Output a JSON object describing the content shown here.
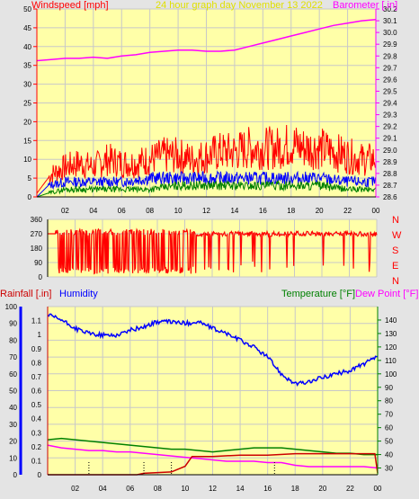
{
  "header": {
    "wind_label": "Windspeed [mph]",
    "title": "24 hour graph day   November 13 2022",
    "baro_label": "Barometer [.in]"
  },
  "bottom_labels": {
    "rain": "Rainfall [.in]",
    "humidity": "Humidity",
    "temperature": "Temperature [°F]",
    "dewpoint": "Dew Point [°F]"
  },
  "colors": {
    "background": "#e4e4e4",
    "plot_fill": "#ffffa8",
    "grid": "#c8c8c8",
    "wind_gust": "#ff0000",
    "wind_avg": "#0000ff",
    "wind_low": "#008000",
    "barometer": "#ff00ff",
    "direction": "#ff0000",
    "humidity": "#0000ff",
    "temperature": "#008000",
    "dewpoint": "#ff00ff",
    "rain": "#cc0000",
    "title": "#e0e000"
  },
  "chart_data": [
    {
      "type": "line",
      "title": "24 hour graph day   November 13 2022",
      "xlabel": "",
      "x_ticks": [
        "02",
        "04",
        "06",
        "08",
        "10",
        "12",
        "14",
        "16",
        "18",
        "20",
        "22",
        "00"
      ],
      "x_range_hours": [
        0,
        24
      ],
      "ylabel_left": "Windspeed [mph]",
      "ylim_left": [
        0,
        50
      ],
      "yticks_left": [
        0,
        5,
        10,
        15,
        20,
        25,
        30,
        35,
        40,
        45,
        50
      ],
      "ylabel_right": "Barometer [.in]",
      "ylim_right": [
        28.6,
        30.2
      ],
      "yticks_right": [
        28.6,
        28.7,
        28.8,
        28.9,
        29.0,
        29.1,
        29.2,
        29.3,
        29.4,
        29.5,
        29.6,
        29.7,
        29.8,
        29.9,
        30.0,
        30.1,
        30.2
      ],
      "grid": true,
      "series": [
        {
          "name": "Barometer [.in]",
          "axis": "right",
          "points": [
            [
              0,
              29.76
            ],
            [
              1,
              29.77
            ],
            [
              2,
              29.78
            ],
            [
              3,
              29.78
            ],
            [
              4,
              29.79
            ],
            [
              5,
              29.78
            ],
            [
              6,
              29.8
            ],
            [
              7,
              29.81
            ],
            [
              8,
              29.83
            ],
            [
              9,
              29.84
            ],
            [
              10,
              29.85
            ],
            [
              11,
              29.85
            ],
            [
              12,
              29.84
            ],
            [
              13,
              29.84
            ],
            [
              14,
              29.85
            ],
            [
              15,
              29.88
            ],
            [
              16,
              29.91
            ],
            [
              17,
              29.94
            ],
            [
              18,
              29.97
            ],
            [
              19,
              30.0
            ],
            [
              20,
              30.03
            ],
            [
              21,
              30.06
            ],
            [
              22,
              30.08
            ],
            [
              23,
              30.1
            ],
            [
              24,
              30.11
            ]
          ]
        },
        {
          "name": "Wind gust",
          "axis": "left",
          "points": [
            [
              0,
              1
            ],
            [
              0.8,
              5
            ],
            [
              1,
              6
            ],
            [
              2,
              8
            ],
            [
              3,
              9
            ],
            [
              4,
              8
            ],
            [
              5,
              10
            ],
            [
              6,
              9
            ],
            [
              7,
              9
            ],
            [
              8,
              10
            ],
            [
              9,
              11
            ],
            [
              10,
              11
            ],
            [
              11,
              10
            ],
            [
              12,
              11
            ],
            [
              13,
              12
            ],
            [
              14,
              12
            ],
            [
              15,
              13
            ],
            [
              16,
              13
            ],
            [
              17,
              13
            ],
            [
              18,
              14
            ],
            [
              19,
              13
            ],
            [
              20,
              13
            ],
            [
              21,
              12
            ],
            [
              22,
              11
            ],
            [
              23,
              10
            ],
            [
              24,
              10
            ]
          ]
        },
        {
          "name": "Wind average",
          "axis": "left",
          "points": [
            [
              0,
              0
            ],
            [
              0.8,
              3
            ],
            [
              2,
              4
            ],
            [
              4,
              4
            ],
            [
              6,
              4
            ],
            [
              8,
              5
            ],
            [
              10,
              5
            ],
            [
              12,
              5
            ],
            [
              14,
              5
            ],
            [
              16,
              5
            ],
            [
              18,
              5
            ],
            [
              20,
              5
            ],
            [
              22,
              4
            ],
            [
              24,
              4
            ]
          ]
        },
        {
          "name": "Wind low",
          "axis": "left",
          "points": [
            [
              0,
              0
            ],
            [
              0.8,
              1
            ],
            [
              2,
              2
            ],
            [
              4,
              2
            ],
            [
              6,
              2
            ],
            [
              8,
              2
            ],
            [
              10,
              3
            ],
            [
              12,
              3
            ],
            [
              14,
              3
            ],
            [
              16,
              3
            ],
            [
              18,
              3
            ],
            [
              20,
              3
            ],
            [
              22,
              2
            ],
            [
              24,
              2
            ]
          ]
        }
      ]
    },
    {
      "type": "line",
      "xlabel": "",
      "x_range_hours": [
        0,
        24
      ],
      "ylabel_left": "",
      "ylim_left": [
        0,
        360
      ],
      "yticks_left": [
        0,
        90,
        180,
        270,
        360
      ],
      "compass_labels": [
        "N",
        "W",
        "S",
        "E",
        "N"
      ],
      "series": [
        {
          "name": "Wind direction",
          "points": [
            [
              0,
              270
            ],
            [
              0.6,
              270
            ],
            [
              1,
              30
            ],
            [
              2,
              40
            ],
            [
              3,
              20
            ],
            [
              4,
              50
            ],
            [
              5,
              30
            ],
            [
              6,
              280
            ],
            [
              7,
              40
            ],
            [
              8,
              290
            ],
            [
              9,
              30
            ],
            [
              10,
              280
            ],
            [
              11,
              290
            ],
            [
              12,
              280
            ],
            [
              13,
              290
            ],
            [
              14,
              280
            ],
            [
              15,
              285
            ],
            [
              16,
              280
            ],
            [
              17,
              290
            ],
            [
              18,
              280
            ],
            [
              19,
              275
            ],
            [
              20,
              285
            ],
            [
              21,
              280
            ],
            [
              22,
              280
            ],
            [
              23,
              275
            ],
            [
              24,
              270
            ]
          ]
        }
      ]
    },
    {
      "type": "line",
      "x_ticks": [
        "02",
        "04",
        "06",
        "08",
        "10",
        "12",
        "14",
        "16",
        "18",
        "20",
        "22",
        "00"
      ],
      "x_range_hours": [
        0,
        24
      ],
      "ylabel_left": "Rainfall [.in]",
      "ylabel_left2": "Humidity",
      "ylim_rain": [
        0,
        1.2
      ],
      "yticks_rain": [
        0,
        0.1,
        0.2,
        0.3,
        0.4,
        0.5,
        0.6,
        0.7,
        0.8,
        0.9,
        1.0,
        1.1
      ],
      "ylim_humidity": [
        0,
        100
      ],
      "yticks_humidity": [
        0,
        10,
        20,
        30,
        40,
        50,
        60,
        70,
        80,
        90,
        100
      ],
      "ylabel_right": "Temperature [°F]",
      "ylabel_right2": "Dew Point [°F]",
      "ylim_right": [
        25,
        150
      ],
      "yticks_right": [
        30,
        40,
        50,
        60,
        70,
        80,
        90,
        100,
        110,
        120,
        130,
        140
      ],
      "series": [
        {
          "name": "Humidity",
          "axis": "humidity",
          "points": [
            [
              0,
              95
            ],
            [
              1,
              92
            ],
            [
              2,
              87
            ],
            [
              3,
              84
            ],
            [
              4,
              83
            ],
            [
              5,
              83
            ],
            [
              6,
              86
            ],
            [
              7,
              88
            ],
            [
              8,
              91
            ],
            [
              9,
              91
            ],
            [
              10,
              90
            ],
            [
              11,
              91
            ],
            [
              12,
              87
            ],
            [
              13,
              84
            ],
            [
              14,
              80
            ],
            [
              15,
              76
            ],
            [
              16,
              70
            ],
            [
              17,
              60
            ],
            [
              18,
              54
            ],
            [
              19,
              55
            ],
            [
              20,
              58
            ],
            [
              21,
              60
            ],
            [
              22,
              62
            ],
            [
              23,
              66
            ],
            [
              24,
              70
            ]
          ]
        },
        {
          "name": "Temperature [°F]",
          "axis": "right",
          "points": [
            [
              0,
              51
            ],
            [
              1,
              52
            ],
            [
              2,
              51
            ],
            [
              3,
              50
            ],
            [
              4,
              49
            ],
            [
              5,
              48
            ],
            [
              6,
              47
            ],
            [
              7,
              46
            ],
            [
              8,
              45
            ],
            [
              9,
              44
            ],
            [
              10,
              44
            ],
            [
              11,
              43
            ],
            [
              12,
              42
            ],
            [
              13,
              43
            ],
            [
              14,
              44
            ],
            [
              15,
              45
            ],
            [
              16,
              45
            ],
            [
              17,
              45
            ],
            [
              18,
              44
            ],
            [
              19,
              43
            ],
            [
              20,
              42
            ],
            [
              21,
              41
            ],
            [
              22,
              41
            ],
            [
              23,
              40
            ],
            [
              24,
              40
            ]
          ]
        },
        {
          "name": "Dew Point [°F]",
          "axis": "right",
          "points": [
            [
              0,
              47
            ],
            [
              1,
              45
            ],
            [
              2,
              44
            ],
            [
              3,
              43
            ],
            [
              4,
              43
            ],
            [
              5,
              42
            ],
            [
              6,
              42
            ],
            [
              7,
              41
            ],
            [
              8,
              40
            ],
            [
              9,
              39
            ],
            [
              10,
              38
            ],
            [
              11,
              37
            ],
            [
              12,
              36
            ],
            [
              13,
              35
            ],
            [
              14,
              35
            ],
            [
              15,
              35
            ],
            [
              16,
              34
            ],
            [
              17,
              34
            ],
            [
              18,
              32
            ],
            [
              19,
              31
            ],
            [
              20,
              31
            ],
            [
              21,
              31
            ],
            [
              22,
              31
            ],
            [
              23,
              31
            ],
            [
              24,
              30
            ]
          ]
        },
        {
          "name": "Rainfall [.in]",
          "axis": "rain",
          "points": [
            [
              0,
              0
            ],
            [
              6.5,
              0
            ],
            [
              7,
              0.01
            ],
            [
              9,
              0.02
            ],
            [
              10,
              0.06
            ],
            [
              10.5,
              0.13
            ],
            [
              12,
              0.13
            ],
            [
              14,
              0.14
            ],
            [
              16,
              0.14
            ],
            [
              18,
              0.15
            ],
            [
              20,
              0.15
            ],
            [
              22,
              0.15
            ],
            [
              23.8,
              0.15
            ],
            [
              24,
              0.01
            ]
          ]
        }
      ]
    }
  ]
}
